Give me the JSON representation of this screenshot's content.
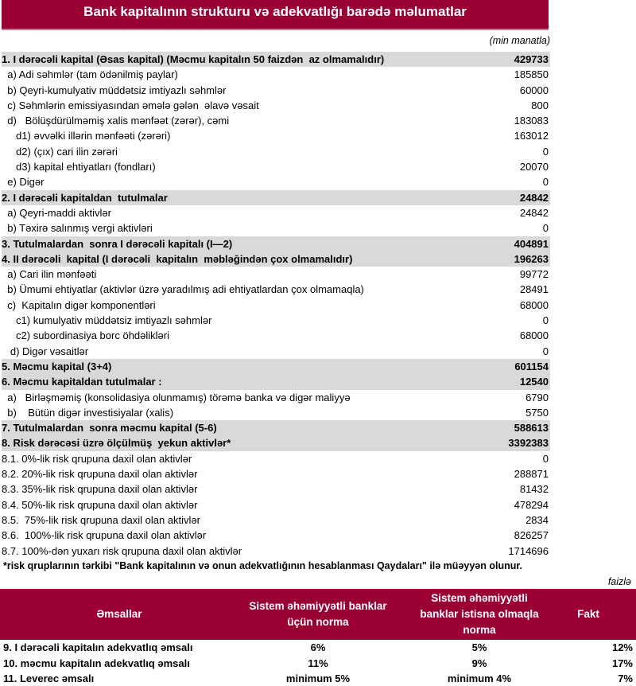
{
  "title": "Bank kapitalının strukturu və adekvatlığı barədə məlumatlar",
  "unit": "(min manatla)",
  "rows": [
    {
      "label": "1. I dərəcəli kapital (Əsas kapital) (Məcmu kapitalın 50 faizdən  az olmamalıdır)",
      "value": "429733",
      "bold": true
    },
    {
      "label": "  a) Adi səhmlər (tam ödənilmiş paylar)",
      "value": "185850"
    },
    {
      "label": "  b) Qeyri-kumulyativ müddətsiz imtiyazlı səhmlər",
      "value": "60000"
    },
    {
      "label": "  c) Səhmlərin emissiyasından əmələ gələn  əlavə vəsait",
      "value": "800"
    },
    {
      "label": "  d)   Bölüşdürülməmiş xalis mənfəət (zərər), cəmi",
      "value": "183083"
    },
    {
      "label": "     d1) əvvəlki illərin mənfəəti (zərəri)",
      "value": "163012"
    },
    {
      "label": "     d2) (çıx) cari ilin zərəri",
      "value": "0"
    },
    {
      "label": "     d3) kapital ehtiyatları (fondları)",
      "value": "20070"
    },
    {
      "label": "  e) Digər",
      "value": "0"
    },
    {
      "label": "2. I dərəcəli kapitaldan  tutulmalar",
      "value": "24842",
      "bold": true
    },
    {
      "label": "  a) Qeyri-maddi aktivlər",
      "value": "24842"
    },
    {
      "label": "  b) Təxirə salınmış vergi aktivləri",
      "value": "0"
    },
    {
      "label": "3. Tutulmalardan  sonra I dərəcəli kapitalı (I—2)",
      "value": "404891",
      "bold": true
    },
    {
      "label": "4. II dərəcəli  kapital (I dərəcəli  kapitalın  məbləğindən çox olmamalıdır)",
      "value": "196263",
      "bold": true
    },
    {
      "label": "  a) Cari ilin mənfəəti",
      "value": "99772"
    },
    {
      "label": "  b) Ümumi ehtiyatlar (aktivlər üzrə yaradılmış adi ehtiyatlardan çox olmamaqla)",
      "value": "28491"
    },
    {
      "label": "  c)  Kapitalın digər komponentləri",
      "value": "68000"
    },
    {
      "label": "     c1) kumulyativ müddətsiz imtiyazlı səhmlər",
      "value": "0"
    },
    {
      "label": "     c2) subordinasiya borc öhdəlikləri",
      "value": "68000"
    },
    {
      "label": "   d) Digər vəsaitlər",
      "value": "0"
    },
    {
      "label": "5. Məcmu kapital (3+4)",
      "value": "601154",
      "bold": true
    },
    {
      "label": "6. Məcmu kapitaldan tutulmalar :",
      "value": "12540",
      "bold": true
    },
    {
      "label": "  a)   Birləşməmiş (konsolidasiya olunmamış) törəmə banka və digər maliyyə",
      "value": "6790"
    },
    {
      "label": "  b)    Bütün digər investisiyalar (xalis)",
      "value": "5750"
    },
    {
      "label": "7. Tutulmalardan  sonra məcmu kapital (5-6)",
      "value": "588613",
      "bold": true
    },
    {
      "label": "8. Risk dərəcəsi üzrə ölçülmüş  yekun aktivlər*",
      "value": "3392383",
      "bold": true
    },
    {
      "label": "8.1. 0%-lik risk qrupuna daxil olan aktivlər",
      "value": "0"
    },
    {
      "label": "8.2. 20%-lik risk qrupuna daxil olan aktivlər",
      "value": "288871"
    },
    {
      "label": "8.3. 35%-lik risk qrupuna daxil olan aktivlər",
      "value": "81432"
    },
    {
      "label": "8.4. 50%-lik risk qrupuna daxil olan aktivlər",
      "value": "478294"
    },
    {
      "label": "8.5.  75%-lik risk qrupuna daxil olan aktivlər",
      "value": "2834"
    },
    {
      "label": "8.6.  100%-lik risk qrupuna daxil olan aktivlər",
      "value": "826257"
    },
    {
      "label": "8.7. 100%-dən yuxarı risk qrupuna daxil olan aktivlər",
      "value": "1714696"
    }
  ],
  "footnote": "*risk qruplarının tərkibi \"Bank kapitalının və onun adekvatlığının hesablanması Qaydaları\" ilə müəyyən olunur.",
  "ratios": {
    "unit": "faizlə",
    "headers": [
      "Əmsallar",
      "Sistem əhəmiyyətli banklar üçün norma",
      "Sistem əhəmiyyətli banklar istisna olmaqla norma",
      "Fakt"
    ],
    "rows": [
      {
        "label": "9.  I dərəcəli  kapitalın  adekvatlıq əmsalı",
        "sys": "6%",
        "other": "5%",
        "fact": "12%"
      },
      {
        "label": "10. məcmu kapitalın  adekvatlıq  əmsalı",
        "sys": "11%",
        "other": "9%",
        "fact": "17%"
      },
      {
        "label": "11. Leverec əmsalı",
        "sys": "minimum 5%",
        "other": "minimum 4%",
        "fact": "7%"
      }
    ]
  },
  "colors": {
    "header": "#9a0036",
    "shade": "#d9d9d9"
  }
}
